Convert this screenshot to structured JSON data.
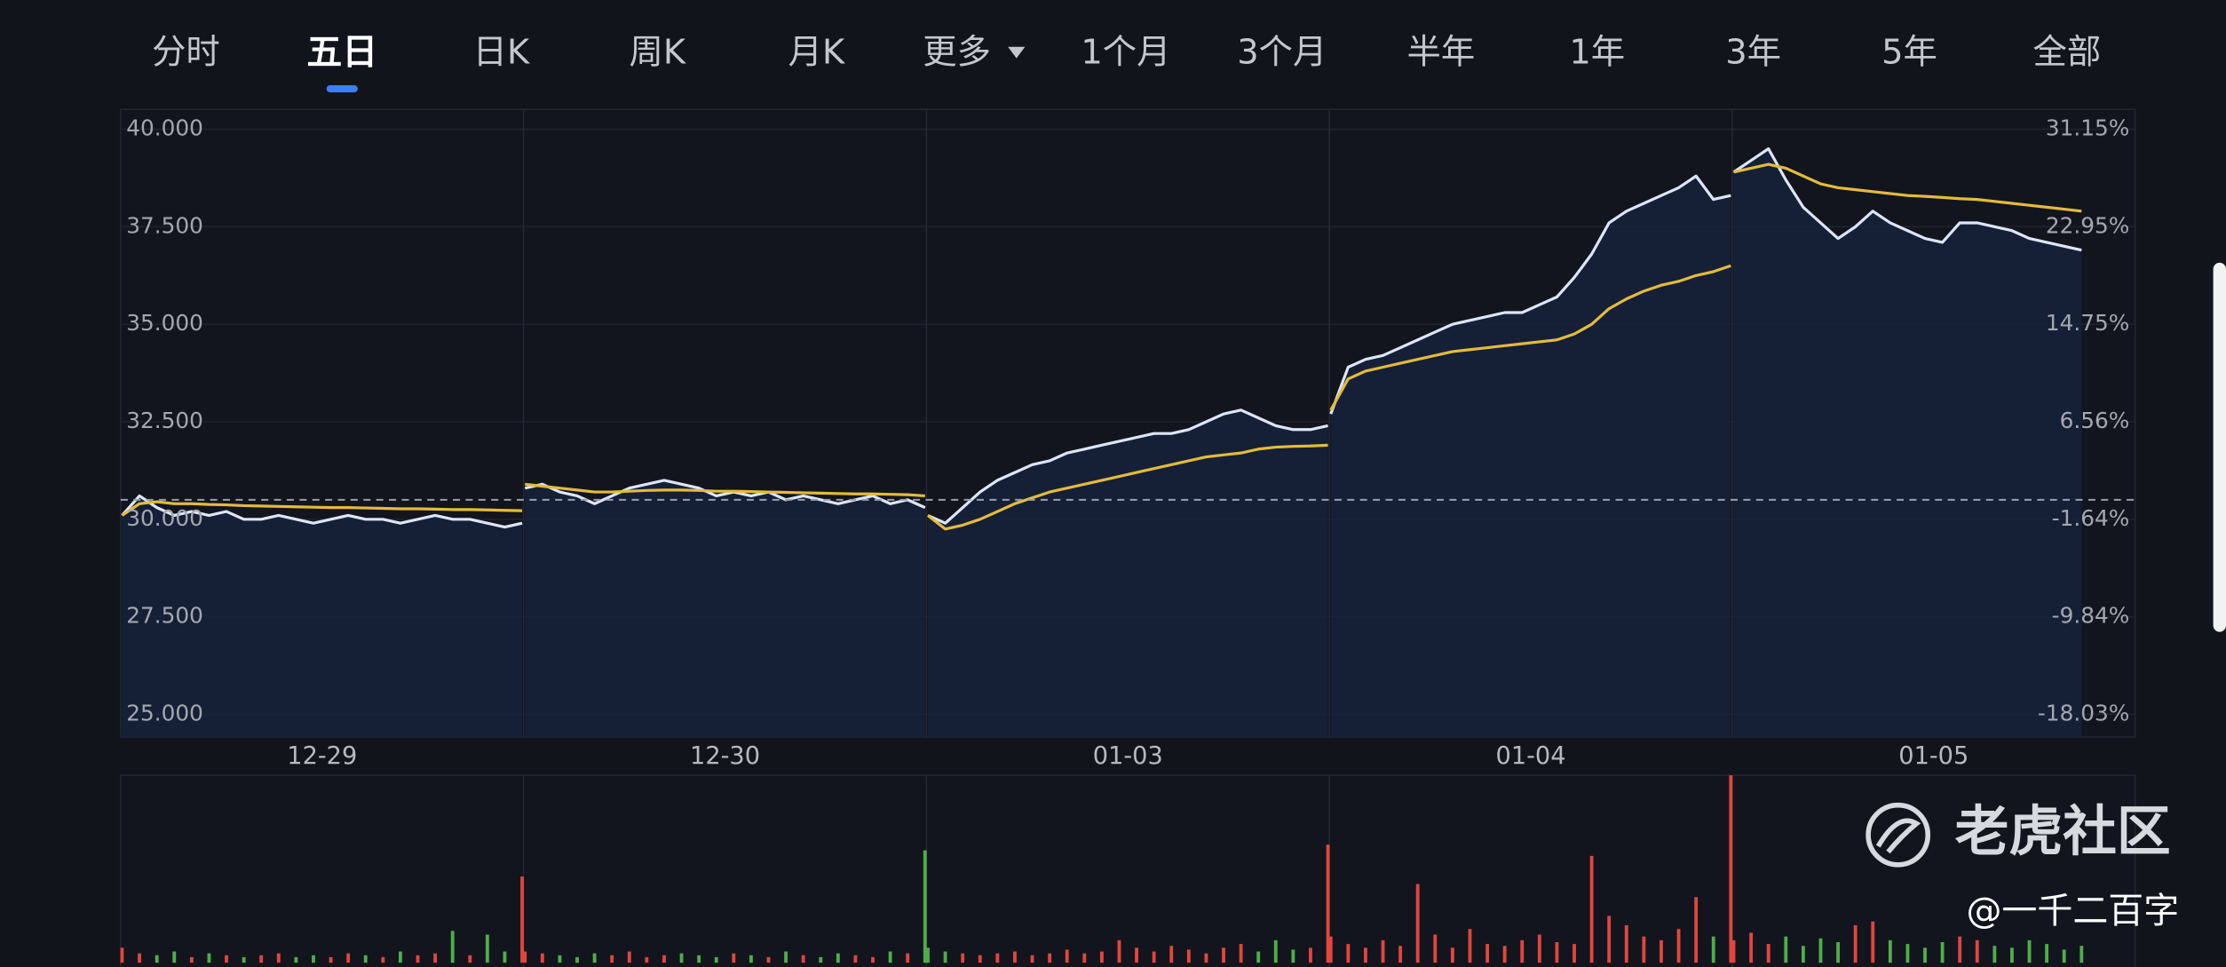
{
  "tabs": [
    "分时",
    "五日",
    "日K",
    "周K",
    "月K",
    "更多",
    "1个月",
    "3个月",
    "半年",
    "1年",
    "3年",
    "5年",
    "全部"
  ],
  "active_tab": 1,
  "watermark": {
    "brand": "老虎社区",
    "author": "@一千二百字"
  },
  "chart_data": {
    "type": "line",
    "categories": [
      "12-29",
      "12-30",
      "01-03",
      "01-04",
      "01-05"
    ],
    "ylim": [
      24.42,
      40.51
    ],
    "yticks": [
      {
        "value": 25,
        "label": "25.000"
      },
      {
        "value": 27.5,
        "label": "27.500"
      },
      {
        "value": 30,
        "label": "30.000"
      },
      {
        "value": 32.5,
        "label": "32.500"
      },
      {
        "value": 35,
        "label": "35.000"
      },
      {
        "value": 37.5,
        "label": "37.500"
      },
      {
        "value": 40,
        "label": "40.000"
      }
    ],
    "y2lim": [
      -19.93,
      32.82
    ],
    "y2ticks": [
      {
        "value": -18.03,
        "label": "-18.03%"
      },
      {
        "value": -9.84,
        "label": "-9.84%"
      },
      {
        "value": -1.64,
        "label": "-1.64%"
      },
      {
        "value": 6.56,
        "label": "6.56%"
      },
      {
        "value": 14.75,
        "label": "14.75%"
      },
      {
        "value": 22.95,
        "label": "22.95%"
      },
      {
        "value": 31.15,
        "label": "31.15%"
      }
    ],
    "grid": true,
    "reference_line": 30.5,
    "series": [
      {
        "color": "#dde6f7",
        "fill": "#16213a",
        "values": [
          [
            30.1,
            30.6,
            30.3,
            30.1,
            30.2,
            30.1,
            30.2,
            30.0,
            30.0,
            30.1,
            30.0,
            29.9,
            30.0,
            30.1,
            30.0,
            30.0,
            29.9,
            30.0,
            30.1,
            30.0,
            30.0,
            29.9,
            29.8,
            29.9
          ],
          [
            30.8,
            30.9,
            30.7,
            30.6,
            30.4,
            30.6,
            30.8,
            30.9,
            31.0,
            30.9,
            30.8,
            30.6,
            30.7,
            30.6,
            30.7,
            30.5,
            30.6,
            30.5,
            30.4,
            30.5,
            30.6,
            30.4,
            30.5,
            30.3
          ],
          [
            30.1,
            29.9,
            30.3,
            30.7,
            31.0,
            31.2,
            31.4,
            31.5,
            31.7,
            31.8,
            31.9,
            32.0,
            32.1,
            32.2,
            32.2,
            32.3,
            32.5,
            32.7,
            32.8,
            32.6,
            32.4,
            32.3,
            32.3,
            32.4
          ],
          [
            32.7,
            33.9,
            34.1,
            34.2,
            34.4,
            34.6,
            34.8,
            35.0,
            35.1,
            35.2,
            35.3,
            35.3,
            35.5,
            35.7,
            36.2,
            36.8,
            37.6,
            37.9,
            38.1,
            38.3,
            38.5,
            38.8,
            38.2,
            38.3
          ],
          [
            38.9,
            39.2,
            39.5,
            38.7,
            38.0,
            37.6,
            37.2,
            37.5,
            37.9,
            37.6,
            37.4,
            37.2,
            37.1,
            37.6,
            37.6,
            37.5,
            37.4,
            37.2,
            37.1,
            37.0,
            36.9,
            null,
            null,
            null
          ]
        ]
      },
      {
        "color": "#e3bb3c",
        "values": [
          [
            30.1,
            30.4,
            30.45,
            30.4,
            30.4,
            30.38,
            30.37,
            30.35,
            30.34,
            30.33,
            30.32,
            30.31,
            30.3,
            30.3,
            30.29,
            30.28,
            30.27,
            30.27,
            30.26,
            30.25,
            30.25,
            30.24,
            30.23,
            30.22
          ],
          [
            30.9,
            30.85,
            30.8,
            30.75,
            30.7,
            30.7,
            30.72,
            30.74,
            30.75,
            30.75,
            30.74,
            30.72,
            30.72,
            30.71,
            30.7,
            30.69,
            30.68,
            30.67,
            30.66,
            30.65,
            30.65,
            30.64,
            30.63,
            30.6
          ],
          [
            30.1,
            29.75,
            29.85,
            30.0,
            30.2,
            30.4,
            30.55,
            30.7,
            30.8,
            30.9,
            31.0,
            31.1,
            31.2,
            31.3,
            31.4,
            31.5,
            31.6,
            31.65,
            31.7,
            31.8,
            31.85,
            31.87,
            31.88,
            31.9
          ],
          [
            32.8,
            33.6,
            33.8,
            33.9,
            34.0,
            34.1,
            34.2,
            34.3,
            34.35,
            34.4,
            34.45,
            34.5,
            34.55,
            34.6,
            34.75,
            35.0,
            35.4,
            35.65,
            35.85,
            36.0,
            36.1,
            36.25,
            36.35,
            36.5
          ],
          [
            38.9,
            39.0,
            39.1,
            39.0,
            38.8,
            38.6,
            38.5,
            38.45,
            38.4,
            38.35,
            38.3,
            38.28,
            38.25,
            38.22,
            38.2,
            38.15,
            38.1,
            38.05,
            38.0,
            37.95,
            37.9,
            null,
            null,
            null
          ]
        ]
      }
    ],
    "volume": {
      "vlim": [
        0,
        100
      ],
      "up_color": "#e2463c",
      "down_color": "#4fae4a",
      "values": [
        [
          8,
          5,
          4,
          6,
          3,
          5,
          4,
          3,
          4,
          5,
          3,
          4,
          3,
          5,
          4,
          3,
          6,
          4,
          5,
          17,
          4,
          15,
          6,
          46
        ],
        [
          6,
          5,
          4,
          3,
          5,
          4,
          6,
          3,
          4,
          5,
          4,
          3,
          5,
          4,
          3,
          6,
          4,
          3,
          5,
          4,
          3,
          6,
          5,
          60
        ],
        [
          8,
          6,
          5,
          4,
          5,
          6,
          4,
          5,
          7,
          5,
          6,
          12,
          8,
          6,
          9,
          7,
          5,
          8,
          10,
          6,
          12,
          7,
          8,
          63
        ],
        [
          14,
          10,
          8,
          12,
          9,
          42,
          15,
          8,
          18,
          10,
          9,
          12,
          15,
          11,
          10,
          57,
          25,
          20,
          14,
          12,
          18,
          35,
          14,
          100
        ],
        [
          12,
          16,
          10,
          14,
          9,
          13,
          11,
          20,
          22,
          12,
          10,
          8,
          11,
          14,
          12,
          9,
          8,
          12,
          10,
          7,
          9,
          null,
          null,
          null
        ]
      ]
    }
  }
}
